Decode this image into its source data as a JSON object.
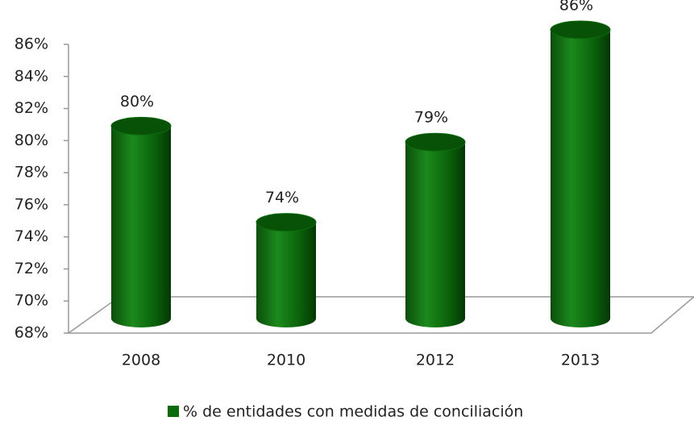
{
  "chart_data": {
    "type": "bar3d",
    "categories": [
      "2008",
      "2010",
      "2012",
      "2013"
    ],
    "series": [
      {
        "name": "% de entidades con medidas de conciliación",
        "color": "#0b6b0b",
        "values": [
          80,
          74,
          79,
          86
        ],
        "value_labels": [
          "80%",
          "74%",
          "79%",
          "86%"
        ]
      }
    ],
    "ylim": [
      68,
      86
    ],
    "yticks": [
      {
        "value": 68,
        "label": "68%"
      },
      {
        "value": 70,
        "label": "70%"
      },
      {
        "value": 72,
        "label": "72%"
      },
      {
        "value": 74,
        "label": "74%"
      },
      {
        "value": 76,
        "label": "76%"
      },
      {
        "value": 78,
        "label": "78%"
      },
      {
        "value": 80,
        "label": "80%"
      },
      {
        "value": 82,
        "label": "82%"
      },
      {
        "value": 84,
        "label": "84%"
      },
      {
        "value": 86,
        "label": "86%"
      }
    ],
    "legend": "bottom"
  }
}
